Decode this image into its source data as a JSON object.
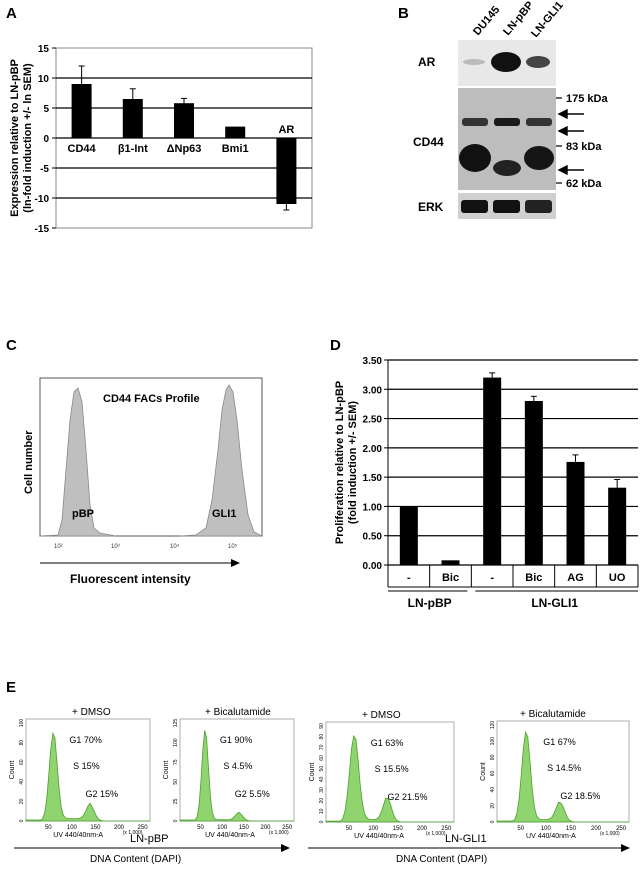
{
  "panels": {
    "A": "A",
    "B": "B",
    "C": "C",
    "D": "D",
    "E": "E"
  },
  "chart_data": [
    {
      "type": "bar",
      "panel": "A",
      "ylabel": "Expression relative to LN-pBP\n(ln-fold induction +/- ln SEM)",
      "categories": [
        "CD44",
        "β1-Int",
        "ΔNp63",
        "Bmi1",
        "AR"
      ],
      "values": [
        9,
        6.5,
        5.8,
        1.9,
        -11
      ],
      "errors": [
        3,
        1.7,
        0.8,
        0,
        1
      ],
      "ylim": [
        -15,
        15
      ],
      "yticks": [
        "15",
        "10",
        "5",
        "0",
        "-5",
        "-10",
        "-15"
      ]
    },
    {
      "type": "bar",
      "panel": "D",
      "ylabel": "Proliferation relative to LN-pBP\n(fold induction +/- SEM)",
      "categories": [
        "-",
        "Bic",
        "-",
        "Bic",
        "AG",
        "UO"
      ],
      "groups": [
        "LN-pBP",
        "LN-GLI1"
      ],
      "values": [
        1.0,
        0.08,
        3.2,
        2.8,
        1.76,
        1.32
      ],
      "errors": [
        0,
        0,
        0.08,
        0.08,
        0.12,
        0.14
      ],
      "ylim": [
        0,
        3.5
      ],
      "yticks": [
        "3.50",
        "3.00",
        "2.50",
        "2.00",
        "1.50",
        "1.00",
        "0.50",
        "0.00"
      ]
    }
  ],
  "blot": {
    "lanes": [
      "DU145",
      "LN-pBP",
      "LN-GLI1"
    ],
    "rows": [
      "AR",
      "CD44",
      "ERK"
    ],
    "markers": [
      "175 kDa",
      "83 kDa",
      "62 kDa"
    ]
  },
  "facs": {
    "title": "CD44 FACs Profile",
    "ylabel": "Cell number",
    "xlabel": "Fluorescent intensity",
    "peaks": [
      "pBP",
      "GLI1"
    ],
    "ticks": [
      "10²",
      "10³",
      "10⁴",
      "10⁵"
    ]
  },
  "cellcycle": {
    "plots": [
      {
        "title": "+ DMSO",
        "g1": "G1 70%",
        "s": "S 15%",
        "g2": "G2 15%",
        "yticks": [
          "0",
          "20",
          "40",
          "60",
          "80",
          "100"
        ]
      },
      {
        "title": "+ Bicalutamide",
        "g1": "G1 90%",
        "s": "S 4.5%",
        "g2": "G2 5.5%",
        "yticks": [
          "0",
          "25",
          "50",
          "75",
          "100",
          "125"
        ]
      },
      {
        "title": "+ DMSO",
        "g1": "G1 63%",
        "s": "S 15.5%",
        "g2": "G2 21.5%",
        "yticks": [
          "0",
          "10",
          "20",
          "30",
          "40",
          "50",
          "60",
          "70",
          "80",
          "90"
        ]
      },
      {
        "title": "+ Bicalutamide",
        "g1": "G1 67%",
        "s": "S 14.5%",
        "g2": "G2 18.5%",
        "yticks": [
          "0",
          "20",
          "40",
          "60",
          "80",
          "100",
          "120"
        ]
      }
    ],
    "xticks": [
      "50",
      "100",
      "150",
      "200",
      "250"
    ],
    "ylabel": "Count",
    "xlabel": "UV 440/40nm-A",
    "xscale": "(x 1,000)",
    "groups": [
      "LN-pBP",
      "LN-GLI1"
    ],
    "axis": "DNA Content (DAPI)"
  }
}
